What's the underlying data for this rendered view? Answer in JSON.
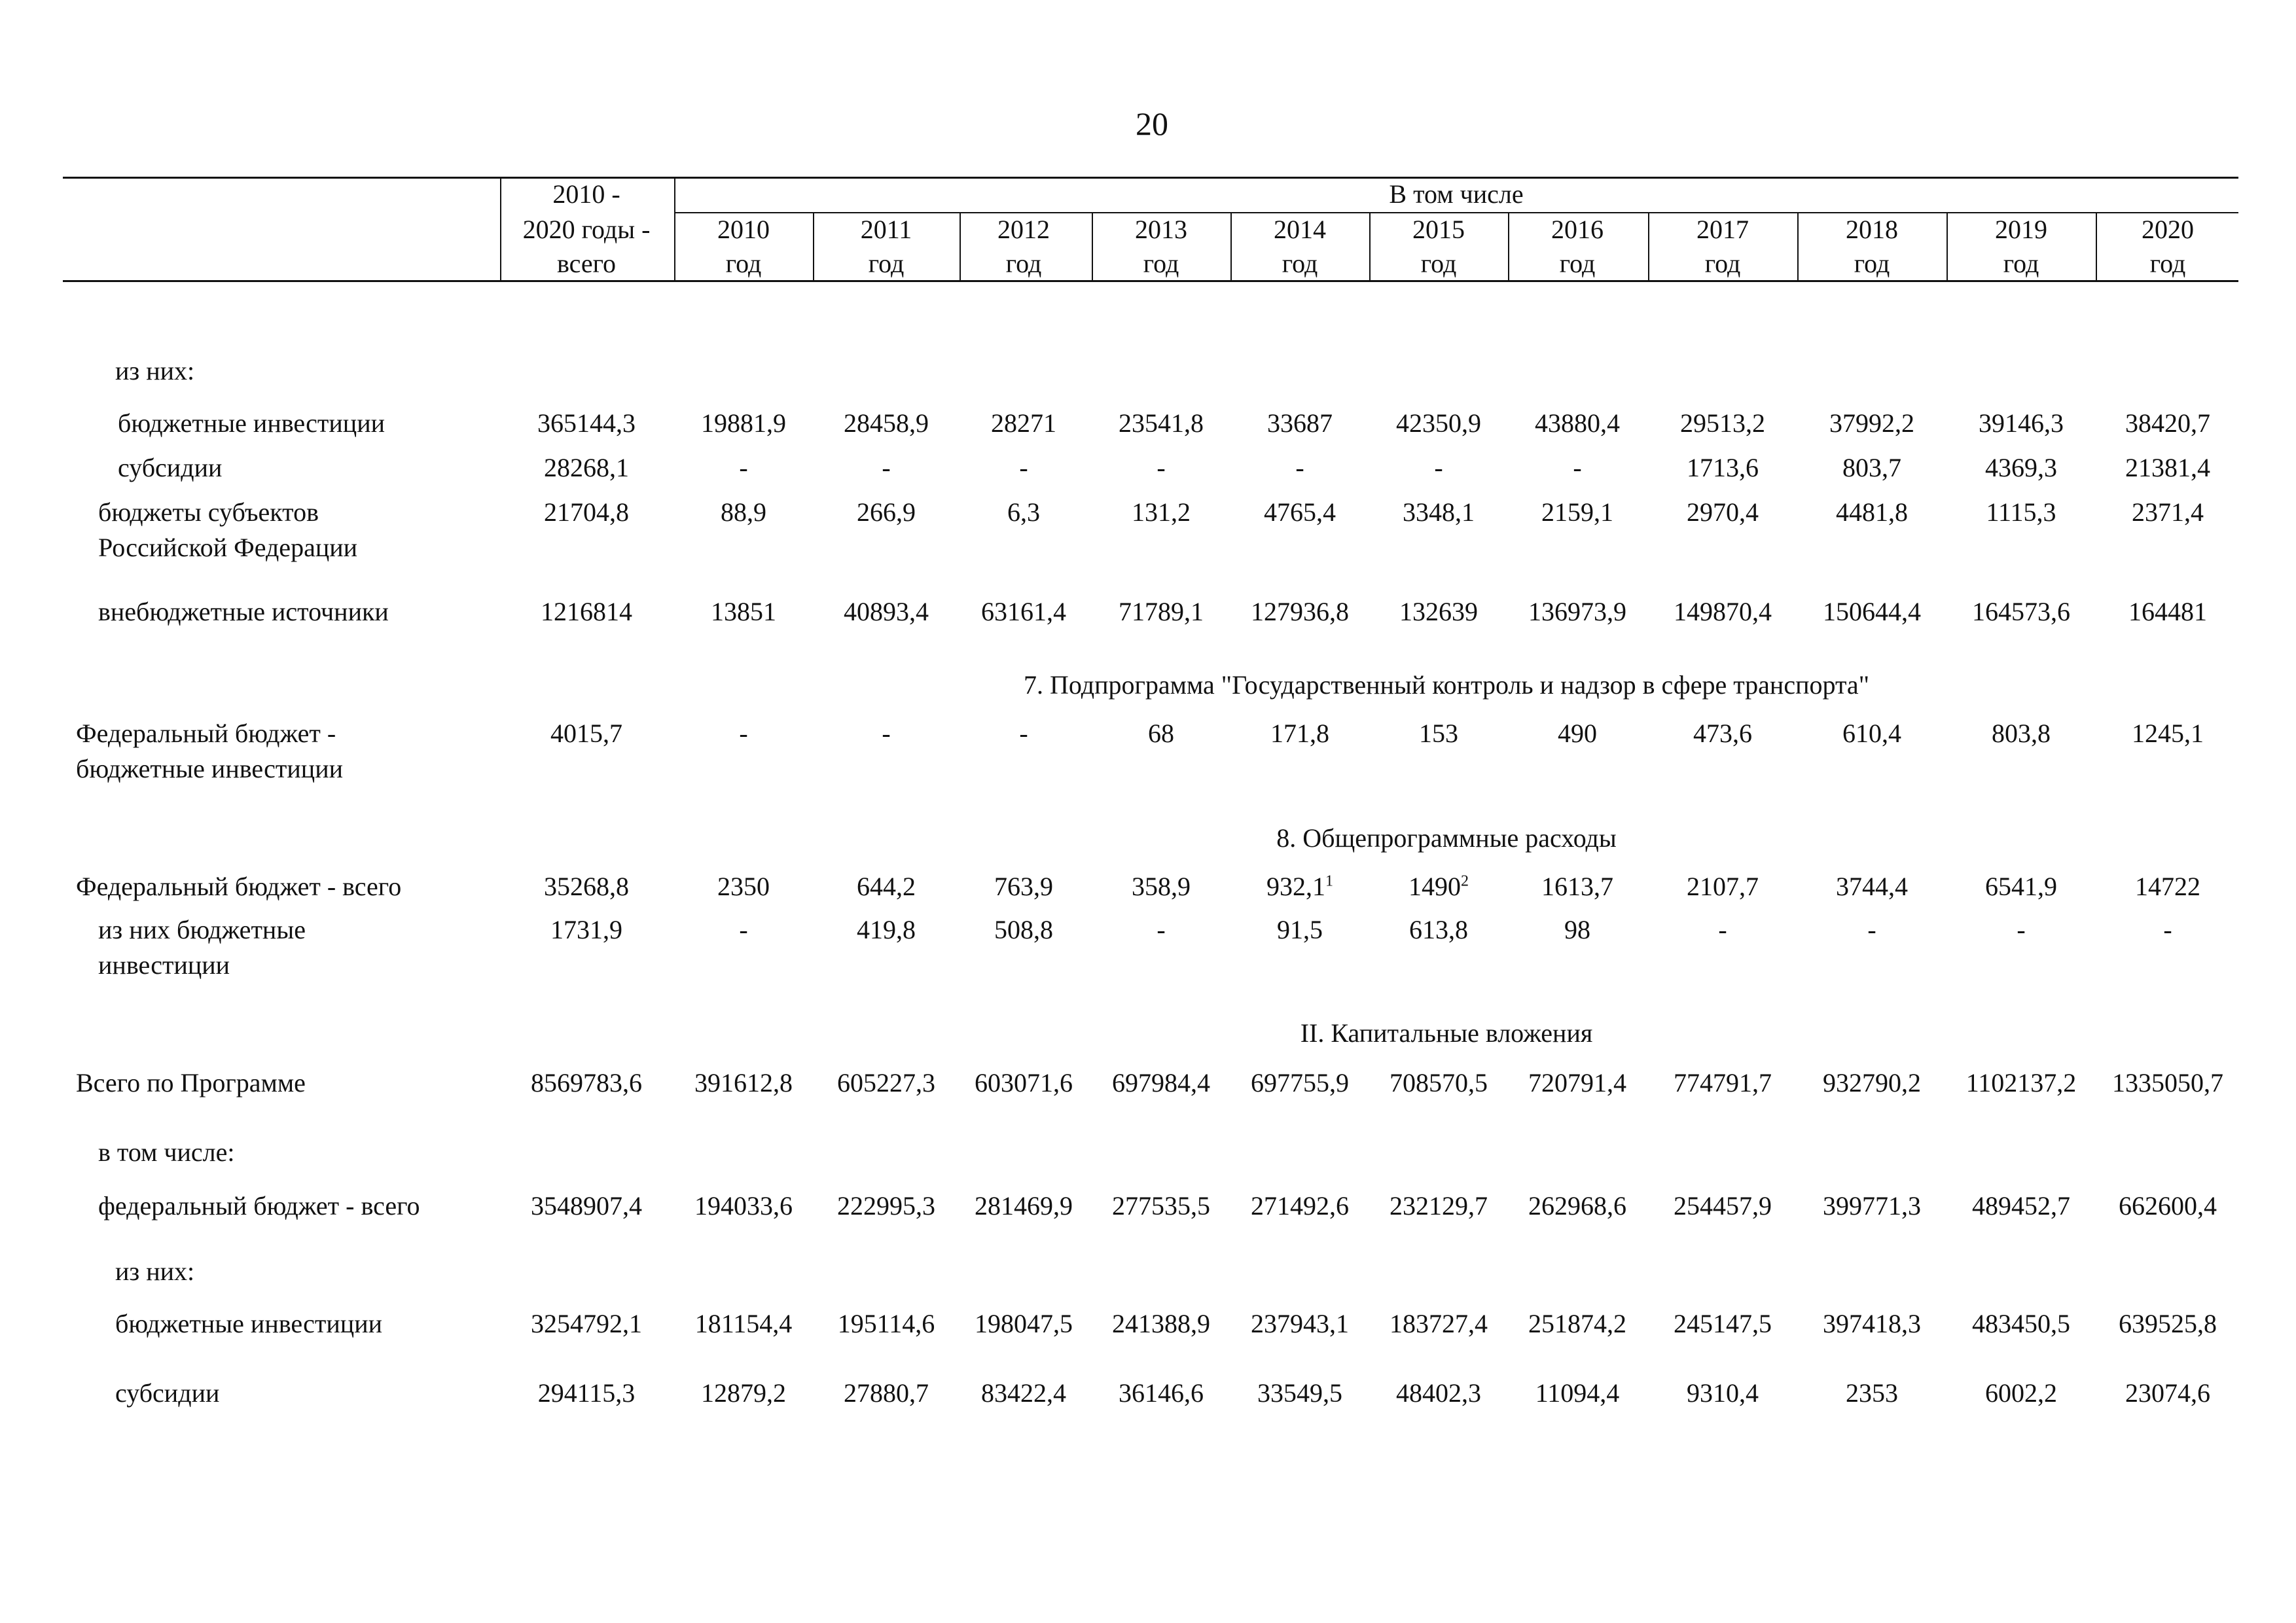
{
  "page_number": "20",
  "header": {
    "total_col": [
      "2010 -",
      "2020 годы -",
      "всего"
    ],
    "group_label": "В том числе",
    "years": [
      "2010",
      "2011",
      "2012",
      "2013",
      "2014",
      "2015",
      "2016",
      "2017",
      "2018",
      "2019",
      "2020"
    ],
    "year_suffix": "год"
  },
  "sections": {
    "s7": "7. Подпрограмма \"Государственный контроль и надзор в сфере транспорта\"",
    "s8": "8. Общепрограммные расходы",
    "s2": "II. Капитальные вложения"
  },
  "rows": [
    {
      "label": [
        "из них:"
      ],
      "values": []
    },
    {
      "label": [
        "бюджетные инвестиции"
      ],
      "values": [
        "365144,3",
        "19881,9",
        "28458,9",
        "28271",
        "23541,8",
        "33687",
        "42350,9",
        "43880,4",
        "29513,2",
        "37992,2",
        "39146,3",
        "38420,7"
      ]
    },
    {
      "label": [
        "субсидии"
      ],
      "values": [
        "28268,1",
        "-",
        "-",
        "-",
        "-",
        "-",
        "-",
        "-",
        "1713,6",
        "803,7",
        "4369,3",
        "21381,4"
      ]
    },
    {
      "label": [
        "бюджеты субъектов",
        "Российской Федерации"
      ],
      "values": [
        "21704,8",
        "88,9",
        "266,9",
        "6,3",
        "131,2",
        "4765,4",
        "3348,1",
        "2159,1",
        "2970,4",
        "4481,8",
        "1115,3",
        "2371,4"
      ]
    },
    {
      "label": [
        "внебюджетные источники"
      ],
      "values": [
        "1216814",
        "13851",
        "40893,4",
        "63161,4",
        "71789,1",
        "127936,8",
        "132639",
        "136973,9",
        "149870,4",
        "150644,4",
        "164573,6",
        "164481"
      ]
    },
    {
      "label": [
        "Федеральный бюджет -",
        "бюджетные инвестиции"
      ],
      "values": [
        "4015,7",
        "-",
        "-",
        "-",
        "68",
        "171,8",
        "153",
        "490",
        "473,6",
        "610,4",
        "803,8",
        "1245,1"
      ]
    },
    {
      "label": [
        "Федеральный бюджет - всего"
      ],
      "values": [
        "35268,8",
        "2350",
        "644,2",
        "763,9",
        "358,9",
        "932,1",
        "1490",
        "1613,7",
        "2107,7",
        "3744,4",
        "6541,9",
        "14722"
      ],
      "sups": {
        "5": "1",
        "6": "2"
      }
    },
    {
      "label": [
        "из них бюджетные",
        "инвестиции"
      ],
      "values": [
        "1731,9",
        "-",
        "419,8",
        "508,8",
        "-",
        "91,5",
        "613,8",
        "98",
        "-",
        "-",
        "-",
        "-"
      ]
    },
    {
      "label": [
        "Всего по Программе"
      ],
      "values": [
        "8569783,6",
        "391612,8",
        "605227,3",
        "603071,6",
        "697984,4",
        "697755,9",
        "708570,5",
        "720791,4",
        "774791,7",
        "932790,2",
        "1102137,2",
        "1335050,7"
      ]
    },
    {
      "label": [
        "в том числе:"
      ],
      "values": []
    },
    {
      "label": [
        "федеральный бюджет - всего"
      ],
      "values": [
        "3548907,4",
        "194033,6",
        "222995,3",
        "281469,9",
        "277535,5",
        "271492,6",
        "232129,7",
        "262968,6",
        "254457,9",
        "399771,3",
        "489452,7",
        "662600,4"
      ]
    },
    {
      "label": [
        "из них:"
      ],
      "values": []
    },
    {
      "label": [
        "бюджетные инвестиции"
      ],
      "values": [
        "3254792,1",
        "181154,4",
        "195114,6",
        "198047,5",
        "241388,9",
        "237943,1",
        "183727,4",
        "251874,2",
        "245147,5",
        "397418,3",
        "483450,5",
        "639525,8"
      ]
    },
    {
      "label": [
        "субсидии"
      ],
      "values": [
        "294115,3",
        "12879,2",
        "27880,7",
        "83422,4",
        "36146,6",
        "33549,5",
        "48402,3",
        "11094,4",
        "9310,4",
        "2353",
        "6002,2",
        "23074,6"
      ]
    }
  ]
}
